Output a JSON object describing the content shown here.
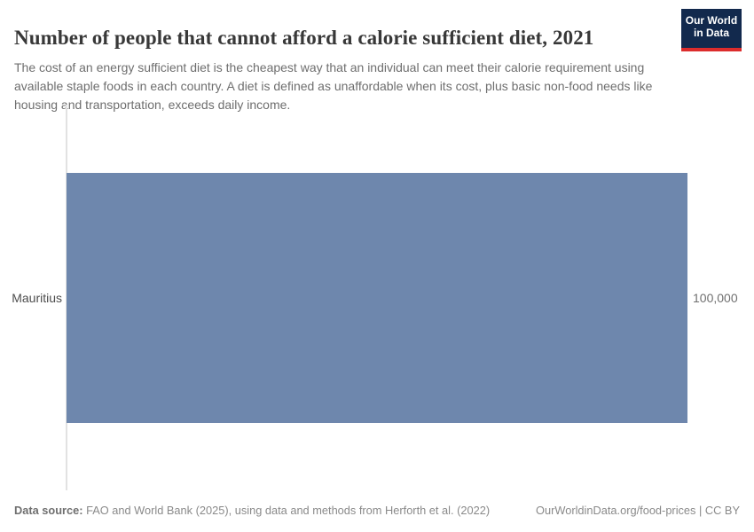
{
  "header": {
    "title": "Number of people that cannot afford a calorie sufficient diet, 2021",
    "subtitle": "The cost of an energy sufficient diet is the cheapest way that an individual can meet their calorie requirement using available staple foods in each country. A diet is defined as unaffordable when its cost, plus basic non-food needs like housing and transportation, exceeds daily income.",
    "logo": {
      "line1": "Our World",
      "line2": "in Data",
      "bg_color": "#12294d",
      "stripe_color": "#dc2c2c"
    }
  },
  "chart": {
    "entity_label": "Mauritius",
    "value_label": "100,000"
  },
  "chart_data": {
    "type": "bar",
    "orientation": "horizontal",
    "title": "Number of people that cannot afford a calorie sufficient diet, 2021",
    "categories": [
      "Mauritius"
    ],
    "values": [
      100000
    ],
    "value_labels": [
      "100,000"
    ],
    "xlabel": "",
    "ylabel": "",
    "xlim": [
      0,
      100000
    ],
    "grid": false,
    "legend": false,
    "bar_color": "#6e87ad",
    "axis_line_color": "#e2e2e2"
  },
  "footer": {
    "source_label": "Data source:",
    "source_text": " FAO and World Bank (2025), using data and methods from Herforth et al. (2022)",
    "right_text": "OurWorldinData.org/food-prices | CC BY"
  }
}
